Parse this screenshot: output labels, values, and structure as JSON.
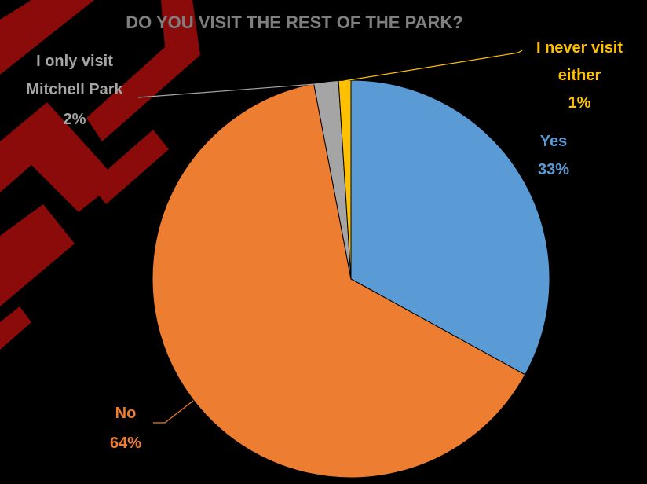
{
  "chart_data": {
    "type": "pie",
    "title": "DO YOU VISIT THE REST OF THE PARK?",
    "slices": [
      {
        "label": "Yes",
        "value": 33,
        "value_label": "33%",
        "color": "#5b9bd5"
      },
      {
        "label": "No",
        "value": 64,
        "value_label": "64%",
        "color": "#ed7d31"
      },
      {
        "label": "I only visit Mitchell Park",
        "label_lines": [
          "I only visit",
          "Mitchell Park"
        ],
        "value": 2,
        "value_label": "2%",
        "color": "#a5a5a5"
      },
      {
        "label": "I never visit either",
        "label_lines": [
          "I never visit",
          "either"
        ],
        "value": 1,
        "value_label": "1%",
        "color": "#ffc000"
      }
    ],
    "start_angle": "12 o'clock",
    "direction": "clockwise",
    "legend": "none",
    "label_color_for_no": "#ed7d31",
    "label_color_for_yes": "#5b9bd5",
    "label_color_for_mitchell": "#a5a5a5",
    "label_color_for_never": "#ffc000"
  },
  "watermark": {
    "text": "DRAFT",
    "color": "#8b0a0a"
  }
}
